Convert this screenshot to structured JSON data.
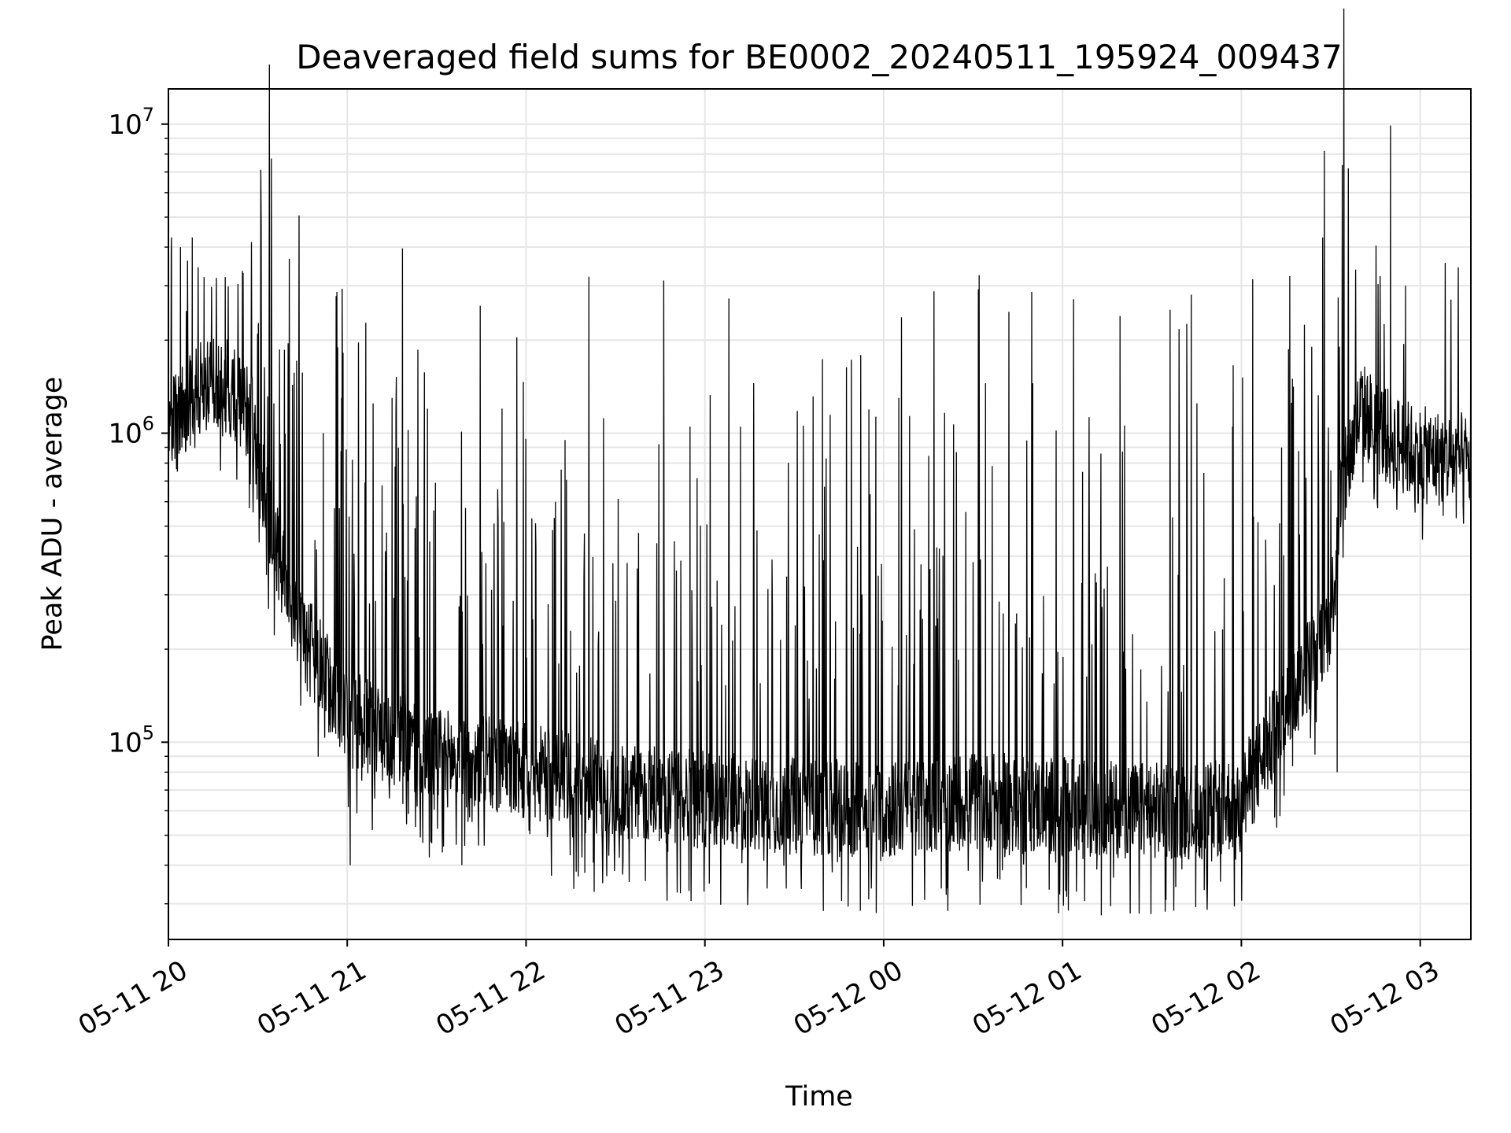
{
  "chart_data": {
    "type": "line",
    "title": "Deaveraged field sums for BE0002_20240511_195924_009437",
    "xlabel": "Time",
    "ylabel": "Peak ADU - average",
    "yscale": "log",
    "ylim": [
      23000,
      13000000
    ],
    "xlim": [
      "2024-05-11 20:00",
      "2024-05-12 03:17"
    ],
    "grid": true,
    "legend": "none",
    "x_ticks": [
      {
        "time": "2024-05-11 20:00",
        "label": "05-11 20"
      },
      {
        "time": "2024-05-11 21:00",
        "label": "05-11 21"
      },
      {
        "time": "2024-05-11 22:00",
        "label": "05-11 22"
      },
      {
        "time": "2024-05-11 23:00",
        "label": "05-11 23"
      },
      {
        "time": "2024-05-12 00:00",
        "label": "05-12 00"
      },
      {
        "time": "2024-05-12 01:00",
        "label": "05-12 01"
      },
      {
        "time": "2024-05-12 02:00",
        "label": "05-12 02"
      },
      {
        "time": "2024-05-12 03:00",
        "label": "05-12 03"
      }
    ],
    "y_ticks": [
      {
        "value": 100000,
        "base": "10",
        "exp": "5"
      },
      {
        "value": 1000000,
        "base": "10",
        "exp": "6"
      },
      {
        "value": 10000000,
        "base": "10",
        "exp": "7"
      }
    ],
    "line_color": "#000000",
    "series": [
      {
        "x": [
          "2024-05-11 20:00",
          "2024-05-11 20:10",
          "2024-05-11 20:20",
          "2024-05-11 20:27",
          "2024-05-11 20:35",
          "2024-05-11 20:45",
          "2024-05-11 21:00",
          "2024-05-11 21:30",
          "2024-05-11 22:00",
          "2024-05-11 22:30",
          "2024-05-11 23:00",
          "2024-05-11 23:30",
          "2024-05-12 00:00",
          "2024-05-12 00:30",
          "2024-05-12 01:00",
          "2024-05-12 01:30",
          "2024-05-12 01:50",
          "2024-05-12 02:00",
          "2024-05-12 02:10",
          "2024-05-12 02:20",
          "2024-05-12 02:30",
          "2024-05-12 02:33",
          "2024-05-12 02:40",
          "2024-05-12 02:50",
          "2024-05-12 03:00",
          "2024-05-12 03:17"
        ],
        "baseline": [
          1000000,
          1400000,
          1400000,
          1200000,
          450000,
          220000,
          120000,
          90000,
          80000,
          70000,
          65000,
          62000,
          60000,
          65000,
          62000,
          60000,
          60000,
          65000,
          100000,
          160000,
          250000,
          600000,
          1200000,
          950000,
          850000,
          800000
        ],
        "spikes": [
          {
            "x": "2024-05-11 20:01",
            "y": 4300000
          },
          {
            "x": "2024-05-11 20:04",
            "y": 4000000
          },
          {
            "x": "2024-05-11 20:08",
            "y": 4300000
          },
          {
            "x": "2024-05-11 20:12",
            "y": 3200000
          },
          {
            "x": "2024-05-11 20:19",
            "y": 3200000
          },
          {
            "x": "2024-05-11 20:25",
            "y": 3300000
          },
          {
            "x": "2024-05-11 20:52",
            "y": 1000000
          },
          {
            "x": "2024-05-11 20:58",
            "y": 1300000
          },
          {
            "x": "2024-05-11 21:15",
            "y": 1300000
          },
          {
            "x": "2024-05-11 21:27",
            "y": 1200000
          },
          {
            "x": "2024-05-11 21:52",
            "y": 1200000
          },
          {
            "x": "2024-05-11 22:13",
            "y": 950000
          },
          {
            "x": "2024-05-11 22:55",
            "y": 1050000
          },
          {
            "x": "2024-05-11 23:12",
            "y": 1050000
          },
          {
            "x": "2024-05-12 00:05",
            "y": 1300000
          },
          {
            "x": "2024-05-12 00:34",
            "y": 1450000
          },
          {
            "x": "2024-05-12 00:50",
            "y": 1450000
          },
          {
            "x": "2024-05-12 01:57",
            "y": 1050000
          },
          {
            "x": "2024-05-12 02:17",
            "y": 1500000
          },
          {
            "x": "2024-05-12 02:32",
            "y": 80000
          },
          {
            "x": "2024-05-12 02:50",
            "y": 9900000
          },
          {
            "x": "2024-05-12 02:55",
            "y": 3000000
          }
        ],
        "dips": [
          {
            "x": "2024-05-11 21:01",
            "y": 40000
          },
          {
            "x": "2024-05-11 23:55",
            "y": 31000
          },
          {
            "x": "2024-05-12 01:01",
            "y": 33000
          }
        ]
      }
    ]
  }
}
